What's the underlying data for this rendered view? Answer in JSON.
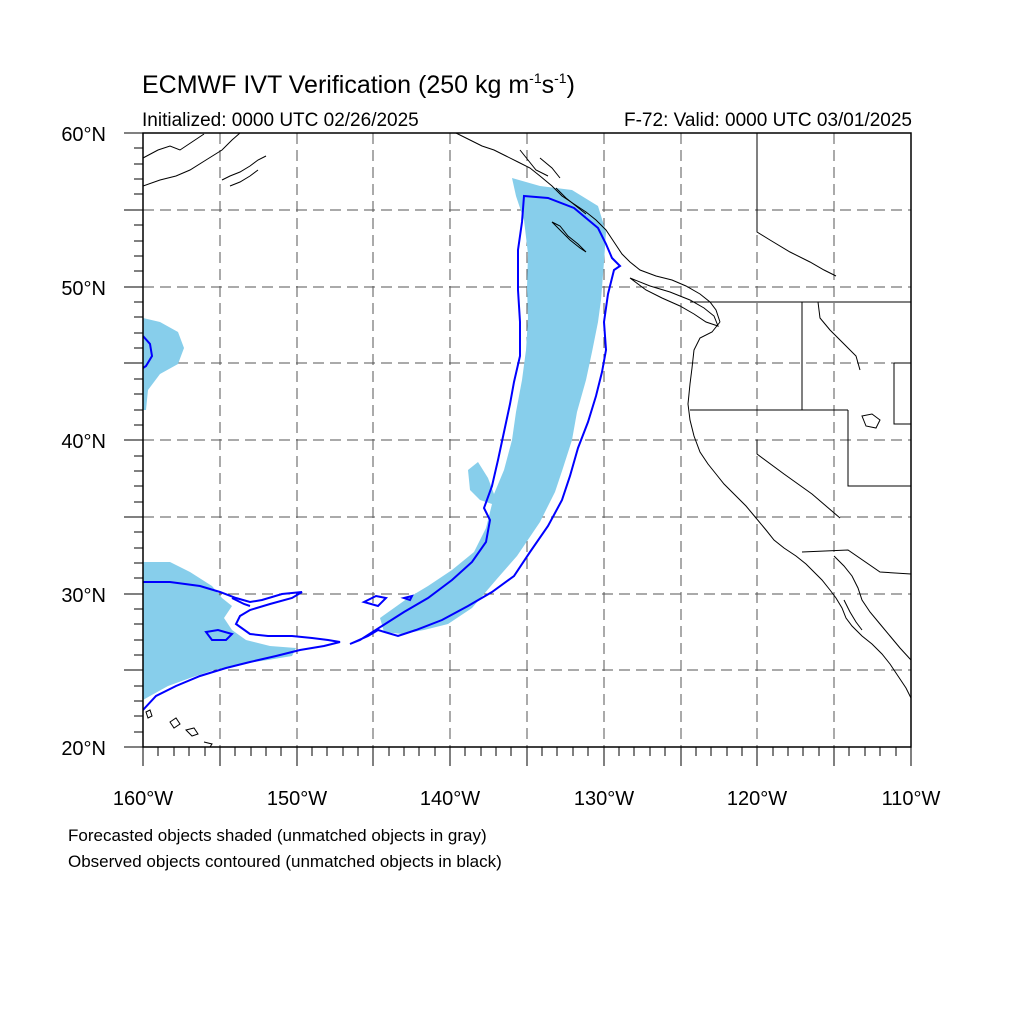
{
  "title": {
    "main": "ECMWF IVT Verification (250 kg m",
    "exp1": "-1",
    "mid": "s",
    "exp2": "-1",
    "end": ")"
  },
  "initialized": "Initialized: 0000 UTC 02/26/2025",
  "valid": "F-72: Valid: 0000 UTC 03/01/2025",
  "legend": {
    "line1": "Forecasted objects shaded (unmatched objects in gray)",
    "line2": "Observed objects contoured (unmatched objects in black)"
  },
  "axes": {
    "lat_labels": [
      "20°N",
      "30°N",
      "40°N",
      "50°N",
      "60°N"
    ],
    "lon_labels": [
      "160°W",
      "150°W",
      "140°W",
      "130°W",
      "120°W",
      "110°W"
    ]
  },
  "colors": {
    "forecast_fill": "#87CEEB",
    "observed_contour": "#0000FF",
    "coast": "#000000",
    "grid": "#555555"
  }
}
